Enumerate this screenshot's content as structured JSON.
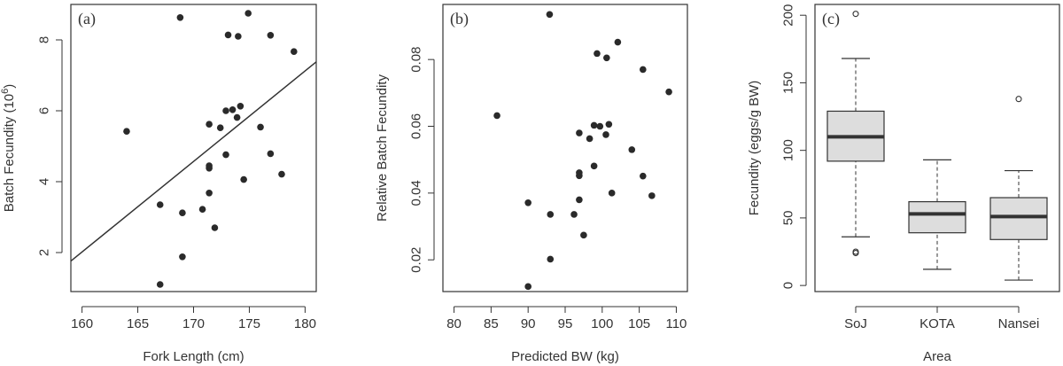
{
  "chart_data": [
    {
      "type": "scatter",
      "panel_label": "(a)",
      "xlabel": "Fork Length (cm)",
      "ylabel": "Batch Fecundity (10",
      "ylabel_sup": "6",
      "ylabel_close": ")",
      "xlim": [
        159,
        181
      ],
      "ylim": [
        0.9,
        9.0
      ],
      "xticks": [
        {
          "v": 160,
          "label": "160"
        },
        {
          "v": 165,
          "label": "165"
        },
        {
          "v": 170,
          "label": "170"
        },
        {
          "v": 175,
          "label": "175"
        },
        {
          "v": 180,
          "label": "180"
        }
      ],
      "yticks": [
        {
          "v": 2,
          "label": "2"
        },
        {
          "v": 4,
          "label": "4"
        },
        {
          "v": 6,
          "label": "6"
        },
        {
          "v": 8,
          "label": "8"
        }
      ],
      "points": [
        [
          164.0,
          5.42
        ],
        [
          167.0,
          3.35
        ],
        [
          167.0,
          1.1
        ],
        [
          168.8,
          8.63
        ],
        [
          169.0,
          3.12
        ],
        [
          169.0,
          1.88
        ],
        [
          170.8,
          3.22
        ],
        [
          171.4,
          3.68
        ],
        [
          171.4,
          4.38
        ],
        [
          171.4,
          4.45
        ],
        [
          171.4,
          5.62
        ],
        [
          171.9,
          2.7
        ],
        [
          172.4,
          5.52
        ],
        [
          172.9,
          6.0
        ],
        [
          172.9,
          4.76
        ],
        [
          173.1,
          8.14
        ],
        [
          173.5,
          6.03
        ],
        [
          173.9,
          5.81
        ],
        [
          174.0,
          8.1
        ],
        [
          174.2,
          6.13
        ],
        [
          174.5,
          4.06
        ],
        [
          174.9,
          8.75
        ],
        [
          176.0,
          5.54
        ],
        [
          176.9,
          4.79
        ],
        [
          176.9,
          8.13
        ],
        [
          177.9,
          4.21
        ],
        [
          179.0,
          7.67
        ]
      ],
      "fit_line": {
        "x": [
          159,
          181
        ],
        "y": [
          1.76,
          7.38
        ]
      },
      "grid": false
    },
    {
      "type": "scatter",
      "panel_label": "(b)",
      "xlabel": "Predicted BW (kg)",
      "ylabel": "Relative Batch Fecundity",
      "xlim": [
        78.5,
        111.5
      ],
      "ylim": [
        0.0105,
        0.0965
      ],
      "xticks": [
        {
          "v": 80,
          "label": "80"
        },
        {
          "v": 85,
          "label": "85"
        },
        {
          "v": 90,
          "label": "90"
        },
        {
          "v": 95,
          "label": "95"
        },
        {
          "v": 100,
          "label": "100"
        },
        {
          "v": 105,
          "label": "105"
        },
        {
          "v": 110,
          "label": "110"
        }
      ],
      "yticks": [
        {
          "v": 0.02,
          "label": "0.02"
        },
        {
          "v": 0.04,
          "label": "0.04"
        },
        {
          "v": 0.06,
          "label": "0.06"
        },
        {
          "v": 0.08,
          "label": "0.08"
        }
      ],
      "points": [
        [
          85.8,
          0.0632
        ],
        [
          90.0,
          0.012
        ],
        [
          90.0,
          0.0371
        ],
        [
          92.9,
          0.0935
        ],
        [
          93.0,
          0.0336
        ],
        [
          93.0,
          0.0202
        ],
        [
          96.2,
          0.0336
        ],
        [
          96.9,
          0.058
        ],
        [
          96.9,
          0.038
        ],
        [
          96.9,
          0.0452
        ],
        [
          96.9,
          0.0461
        ],
        [
          97.5,
          0.0274
        ],
        [
          98.3,
          0.0563
        ],
        [
          98.9,
          0.0481
        ],
        [
          98.9,
          0.0603
        ],
        [
          99.3,
          0.0818
        ],
        [
          99.7,
          0.06
        ],
        [
          100.6,
          0.0805
        ],
        [
          100.5,
          0.0575
        ],
        [
          100.9,
          0.0606
        ],
        [
          101.3,
          0.04
        ],
        [
          102.1,
          0.0852
        ],
        [
          104.0,
          0.053
        ],
        [
          105.5,
          0.077
        ],
        [
          105.5,
          0.0451
        ],
        [
          106.7,
          0.0392
        ],
        [
          109.0,
          0.0703
        ]
      ],
      "grid": false
    },
    {
      "type": "box",
      "panel_label": "(c)",
      "xlabel": "Area",
      "ylabel": "Fecundity (eggs/g BW)",
      "ylim": [
        -4.5,
        208
      ],
      "yticks": [
        {
          "v": 0,
          "label": "0"
        },
        {
          "v": 50,
          "label": "50"
        },
        {
          "v": 100,
          "label": "100"
        },
        {
          "v": 150,
          "label": "150"
        },
        {
          "v": 200,
          "label": "200"
        }
      ],
      "categories": [
        "SoJ",
        "KOTA",
        "Nansei"
      ],
      "boxes": [
        {
          "name": "SoJ",
          "min": 36,
          "q1": 92,
          "median": 110,
          "q3": 129,
          "max": 168,
          "outliers": [
            201,
            25,
            24
          ]
        },
        {
          "name": "KOTA",
          "min": 12,
          "q1": 39,
          "median": 53,
          "q3": 62,
          "max": 93,
          "outliers": []
        },
        {
          "name": "Nansei",
          "min": 4,
          "q1": 34,
          "median": 51,
          "q3": 65,
          "max": 85,
          "outliers": [
            138
          ]
        }
      ],
      "box_fill": "#dddddd",
      "grid": false
    }
  ],
  "colors": {
    "ink": "#333333",
    "point": "#2a2a2a",
    "box_fill": "#dddddd"
  }
}
